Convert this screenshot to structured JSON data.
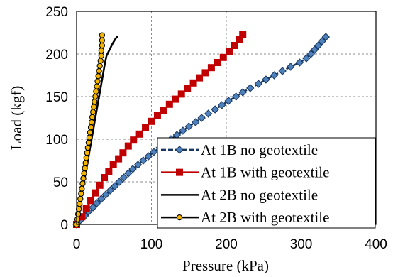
{
  "chart_data": {
    "type": "line",
    "title": "",
    "xlabel": "Pressure (kPa)",
    "ylabel": "Load (kgf)",
    "xlim": [
      0,
      400
    ],
    "ylim": [
      0,
      250
    ],
    "xticks": [
      "0",
      "100",
      "200",
      "300",
      "400"
    ],
    "yticks": [
      "0",
      "50",
      "100",
      "150",
      "200",
      "250"
    ],
    "grid": "dashed, both axes",
    "legend_position": "bottom-right",
    "series": [
      {
        "name": "At 1B  no geotextile",
        "color": "#17375E",
        "marker": "diamond",
        "marker_fill": "#4F81BD",
        "dashed": true,
        "points": [
          [
            0,
            0
          ],
          [
            5,
            5
          ],
          [
            11,
            10
          ],
          [
            16,
            15
          ],
          [
            22,
            20
          ],
          [
            27,
            25
          ],
          [
            33,
            30
          ],
          [
            39,
            35
          ],
          [
            45,
            40
          ],
          [
            51,
            45
          ],
          [
            57,
            50
          ],
          [
            63,
            55
          ],
          [
            69,
            60
          ],
          [
            75,
            65
          ],
          [
            82,
            70
          ],
          [
            89,
            75
          ],
          [
            96,
            80
          ],
          [
            103,
            85
          ],
          [
            111,
            90
          ],
          [
            118,
            95
          ],
          [
            126,
            100
          ],
          [
            134,
            105
          ],
          [
            142,
            110
          ],
          [
            150,
            115
          ],
          [
            159,
            120
          ],
          [
            167,
            125
          ],
          [
            176,
            130
          ],
          [
            185,
            135
          ],
          [
            194,
            140
          ],
          [
            203,
            145
          ],
          [
            213,
            150
          ],
          [
            222,
            155
          ],
          [
            232,
            160
          ],
          [
            243,
            165
          ],
          [
            253,
            170
          ],
          [
            264,
            175
          ],
          [
            275,
            180
          ],
          [
            286,
            185
          ],
          [
            298,
            190
          ],
          [
            307,
            195
          ],
          [
            313,
            200
          ],
          [
            318,
            205
          ],
          [
            323,
            210
          ],
          [
            328,
            215
          ],
          [
            333,
            220
          ]
        ]
      },
      {
        "name": "At 1B with  geotextile",
        "color": "#C00000",
        "marker": "square",
        "marker_fill": "#C00000",
        "dashed": false,
        "points": [
          [
            0,
            0
          ],
          [
            7,
            9
          ],
          [
            13,
            19
          ],
          [
            19,
            28
          ],
          [
            25,
            37
          ],
          [
            31,
            46
          ],
          [
            37,
            55
          ],
          [
            43,
            62
          ],
          [
            49,
            70
          ],
          [
            56,
            77
          ],
          [
            62,
            84
          ],
          [
            69,
            92
          ],
          [
            76,
            99
          ],
          [
            84,
            106
          ],
          [
            92,
            114
          ],
          [
            100,
            121
          ],
          [
            108,
            128
          ],
          [
            116,
            134
          ],
          [
            124,
            141
          ],
          [
            132,
            147
          ],
          [
            140,
            153
          ],
          [
            148,
            160
          ],
          [
            156,
            166
          ],
          [
            164,
            172
          ],
          [
            172,
            178
          ],
          [
            180,
            184
          ],
          [
            188,
            190
          ],
          [
            196,
            196
          ],
          [
            204,
            203
          ],
          [
            211,
            210
          ],
          [
            218,
            217
          ],
          [
            222,
            223
          ]
        ]
      },
      {
        "name": "At 2B  no geotextile",
        "color": "#000000",
        "marker": "none",
        "marker_fill": "none",
        "dashed": false,
        "points": [
          [
            0,
            0
          ],
          [
            2,
            10
          ],
          [
            4,
            20
          ],
          [
            6,
            30
          ],
          [
            8,
            40
          ],
          [
            10,
            50
          ],
          [
            12,
            60
          ],
          [
            14,
            70
          ],
          [
            16,
            80
          ],
          [
            18,
            90
          ],
          [
            20,
            100
          ],
          [
            22,
            110
          ],
          [
            24,
            120
          ],
          [
            26,
            130
          ],
          [
            28,
            140
          ],
          [
            30,
            150
          ],
          [
            32,
            160
          ],
          [
            34,
            170
          ],
          [
            36,
            180
          ],
          [
            38,
            190
          ],
          [
            40,
            198
          ],
          [
            44,
            205
          ],
          [
            48,
            212
          ],
          [
            52,
            218
          ],
          [
            55,
            221
          ]
        ]
      },
      {
        "name": "At 2B with  geotextile",
        "color": "#000000",
        "marker": "circle",
        "marker_fill": "#F5B400",
        "dashed": false,
        "points": [
          [
            0,
            0
          ],
          [
            1,
            6
          ],
          [
            2,
            12
          ],
          [
            3,
            18
          ],
          [
            4,
            24
          ],
          [
            5,
            30
          ],
          [
            6,
            36
          ],
          [
            7,
            42
          ],
          [
            8,
            48
          ],
          [
            9,
            54
          ],
          [
            10,
            60
          ],
          [
            11,
            66
          ],
          [
            12,
            72
          ],
          [
            13,
            78
          ],
          [
            14,
            84
          ],
          [
            15,
            90
          ],
          [
            16,
            96
          ],
          [
            17,
            102
          ],
          [
            18,
            108
          ],
          [
            19,
            114
          ],
          [
            20,
            120
          ],
          [
            21,
            126
          ],
          [
            22,
            132
          ],
          [
            23,
            138
          ],
          [
            24,
            144
          ],
          [
            25,
            150
          ],
          [
            26,
            156
          ],
          [
            27,
            162
          ],
          [
            28,
            168
          ],
          [
            29,
            174
          ],
          [
            30,
            180
          ],
          [
            31,
            186
          ],
          [
            32,
            192
          ],
          [
            33,
            198
          ],
          [
            33,
            204
          ],
          [
            34,
            210
          ],
          [
            34,
            216
          ],
          [
            34,
            222
          ]
        ]
      }
    ]
  }
}
